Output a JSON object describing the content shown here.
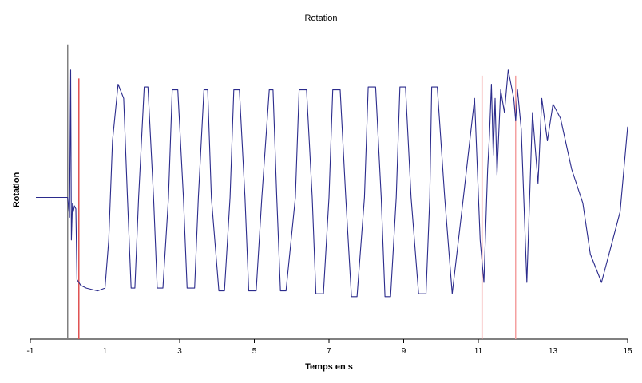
{
  "chart_data": {
    "type": "line",
    "title": "Rotation",
    "xlabel": "Temps en s",
    "ylabel": "Rotation",
    "xlim": [
      -1,
      15
    ],
    "ylim": [
      0,
      1
    ],
    "x_ticks": [
      "-1",
      "1",
      "3",
      "5",
      "7",
      "9",
      "11",
      "13",
      "15"
    ],
    "grid": false,
    "legend": "none",
    "series": [
      {
        "color": "#2b2b8c",
        "x": [
          -0.85,
          -0.05,
          0.0,
          0.05,
          0.08,
          0.1,
          0.13,
          0.15,
          0.18,
          0.22,
          0.25,
          0.3,
          0.35,
          0.5,
          0.8,
          1.0,
          1.1,
          1.2,
          1.35,
          1.5,
          1.6,
          1.7,
          1.8,
          1.9,
          2.05,
          2.15,
          2.3,
          2.4,
          2.55,
          2.7,
          2.8,
          2.95,
          3.1,
          3.2,
          3.4,
          3.5,
          3.65,
          3.75,
          3.85,
          4.05,
          4.2,
          4.35,
          4.45,
          4.6,
          4.75,
          4.85,
          5.05,
          5.2,
          5.4,
          5.5,
          5.6,
          5.7,
          5.85,
          6.1,
          6.2,
          6.4,
          6.55,
          6.65,
          6.85,
          7.0,
          7.1,
          7.3,
          7.45,
          7.6,
          7.75,
          7.95,
          8.05,
          8.25,
          8.4,
          8.5,
          8.65,
          8.8,
          8.9,
          9.05,
          9.2,
          9.4,
          9.6,
          9.7,
          9.75,
          9.9,
          10.1,
          10.3,
          10.6,
          10.9,
          11.05,
          11.15,
          11.25,
          11.3,
          11.35,
          11.4,
          11.45,
          11.5,
          11.6,
          11.7,
          11.8,
          11.95,
          12.0,
          12.05,
          12.15,
          12.3,
          12.45,
          12.6,
          12.7,
          12.85,
          13.0,
          13.2,
          13.5,
          13.8,
          14.0,
          14.3,
          14.6,
          14.8,
          15.0
        ],
        "y": [
          0.5,
          0.5,
          0.5,
          0.43,
          0.95,
          0.35,
          0.48,
          0.45,
          0.47,
          0.46,
          0.21,
          0.2,
          0.19,
          0.18,
          0.17,
          0.18,
          0.35,
          0.7,
          0.9,
          0.85,
          0.5,
          0.18,
          0.18,
          0.5,
          0.89,
          0.89,
          0.5,
          0.18,
          0.18,
          0.5,
          0.88,
          0.88,
          0.5,
          0.18,
          0.18,
          0.5,
          0.88,
          0.88,
          0.5,
          0.17,
          0.17,
          0.5,
          0.88,
          0.88,
          0.5,
          0.17,
          0.17,
          0.5,
          0.88,
          0.88,
          0.5,
          0.17,
          0.17,
          0.5,
          0.88,
          0.88,
          0.5,
          0.16,
          0.16,
          0.5,
          0.88,
          0.88,
          0.5,
          0.15,
          0.15,
          0.5,
          0.89,
          0.89,
          0.5,
          0.15,
          0.15,
          0.5,
          0.89,
          0.89,
          0.5,
          0.16,
          0.16,
          0.5,
          0.89,
          0.89,
          0.5,
          0.16,
          0.5,
          0.85,
          0.35,
          0.2,
          0.6,
          0.72,
          0.9,
          0.65,
          0.85,
          0.58,
          0.88,
          0.8,
          0.95,
          0.85,
          0.77,
          0.88,
          0.74,
          0.2,
          0.8,
          0.55,
          0.85,
          0.7,
          0.83,
          0.78,
          0.6,
          0.48,
          0.3,
          0.2,
          0.35,
          0.45,
          0.75
        ]
      }
    ],
    "markers": [
      {
        "x": 0.0,
        "color": "#808080",
        "y_top": 1.04,
        "y_bottom": 0.0
      },
      {
        "x": 0.3,
        "color": "#e05050",
        "y_top": 0.92,
        "y_bottom": 0.0
      },
      {
        "x": 11.1,
        "color": "#f4a0a0",
        "y_top": 0.93,
        "y_bottom": 0.0
      },
      {
        "x": 12.0,
        "color": "#f4a0a0",
        "y_top": 0.93,
        "y_bottom": 0.0
      }
    ]
  }
}
